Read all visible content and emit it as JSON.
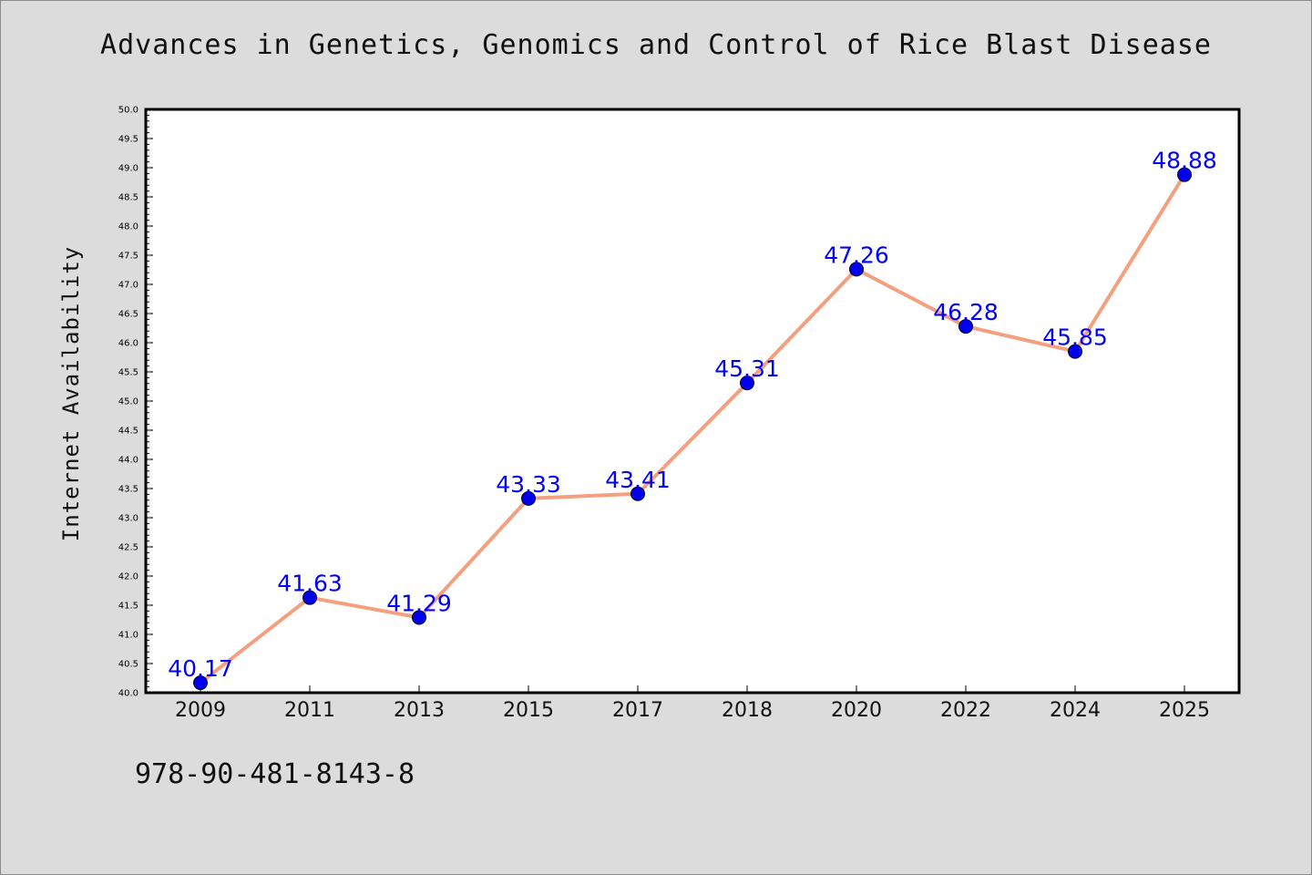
{
  "title": "Advances in Genetics, Genomics and Control of Rice Blast Disease",
  "footer_text": "978-90-481-8143-8",
  "chart_data": {
    "type": "line",
    "title": "Advances in Genetics, Genomics and Control of Rice Blast Disease",
    "xlabel": "",
    "ylabel": "Internet Availability",
    "categories": [
      "2009",
      "2011",
      "2013",
      "2015",
      "2017",
      "2018",
      "2020",
      "2022",
      "2024",
      "2025"
    ],
    "series": [
      {
        "values": [
          40.17,
          41.63,
          41.29,
          43.33,
          43.41,
          45.31,
          47.26,
          46.28,
          45.85,
          48.88
        ]
      }
    ],
    "data_labels": [
      "40.17",
      "41.63",
      "41.29",
      "43.33",
      "43.41",
      "45.31",
      "47.26",
      "46.28",
      "45.85",
      "48.88"
    ],
    "ylim": [
      40.0,
      50.0
    ],
    "yticks": [
      "40.0",
      "40.5",
      "41.0",
      "41.5",
      "42.0",
      "42.5",
      "43.0",
      "43.5",
      "44.0",
      "44.5",
      "45.0",
      "45.5",
      "46.0",
      "46.5",
      "47.0",
      "47.5",
      "48.0",
      "48.5",
      "49.0",
      "49.5",
      "50.0"
    ],
    "grid": false,
    "line_color": "#f4a07f",
    "marker_color": "#0000ee",
    "label_color": "#0000ff",
    "background_color": "#dcdcdc"
  }
}
